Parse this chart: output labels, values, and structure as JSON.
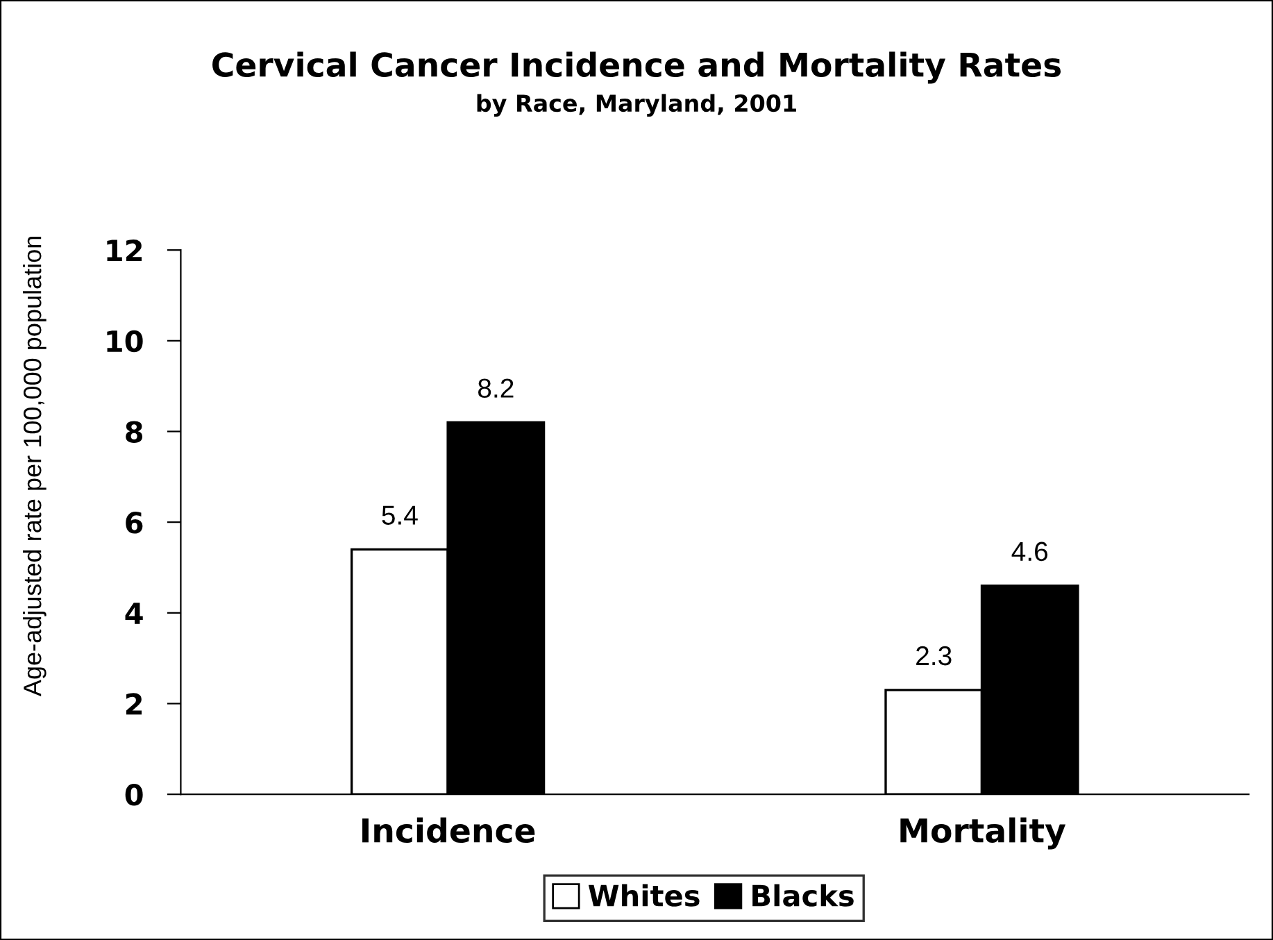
{
  "chart_data": {
    "type": "bar",
    "title": "Cervical Cancer Incidence and Mortality Rates",
    "subtitle": "by Race, Maryland, 2001",
    "ylabel": "Age-adjusted rate per 100,000 population",
    "categories": [
      "Incidence",
      "Mortality"
    ],
    "series": [
      {
        "name": "Whites",
        "color": "#ffffff",
        "values": [
          5.4,
          2.3
        ]
      },
      {
        "name": "Blacks",
        "color": "#000000",
        "values": [
          8.2,
          4.6
        ]
      }
    ],
    "ylim": [
      0,
      12
    ],
    "yticks": [
      0,
      2,
      4,
      6,
      8,
      10,
      12
    ],
    "grid": false,
    "legend": "bottom",
    "data_labels": true
  }
}
